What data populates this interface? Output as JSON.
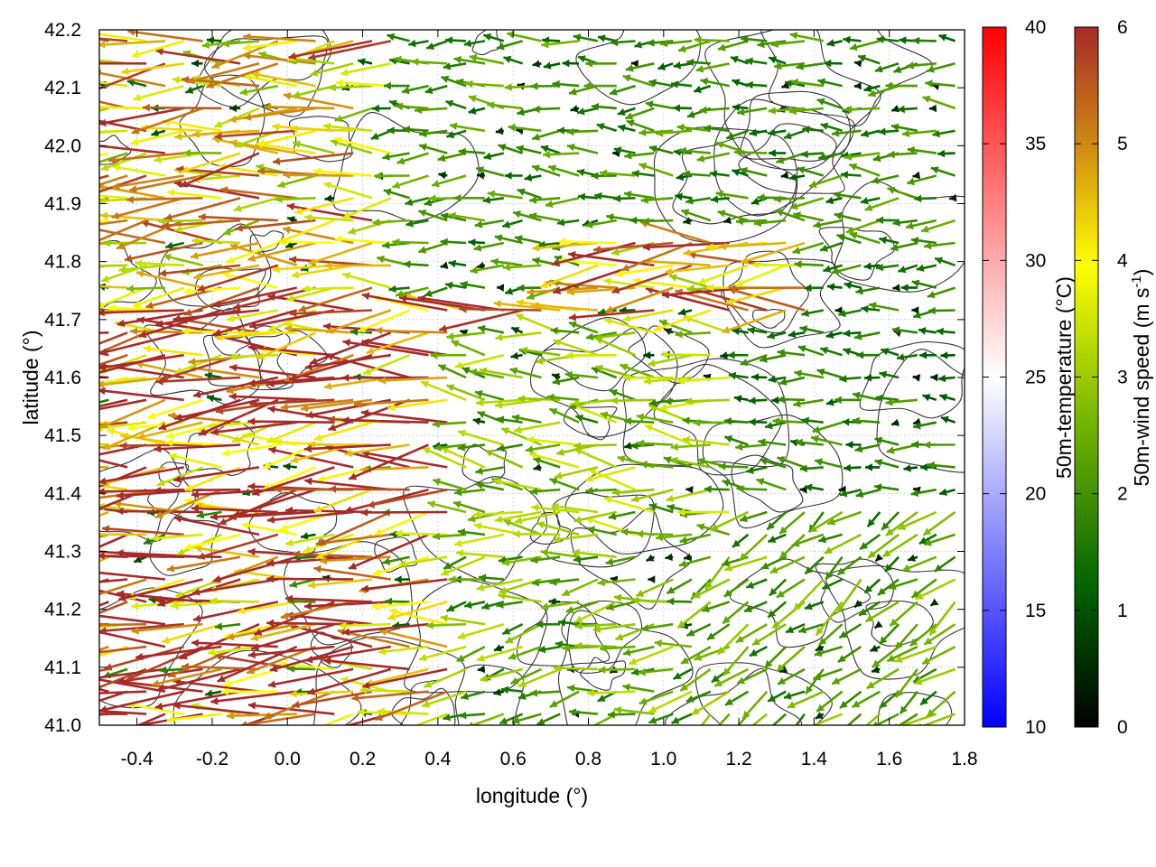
{
  "chart_data": {
    "type": "vector-field",
    "xlabel": "longitude (°)",
    "ylabel": "latitude (°)",
    "xlim": [
      -0.5,
      1.8
    ],
    "ylim": [
      41.0,
      42.2
    ],
    "x_ticks": [
      "-0.4",
      "-0.2",
      "0.0",
      "0.2",
      "0.4",
      "0.6",
      "0.8",
      "1.0",
      "1.2",
      "1.4",
      "1.6",
      "1.8"
    ],
    "y_ticks": [
      "41.0",
      "41.1",
      "41.2",
      "41.3",
      "41.4",
      "41.5",
      "41.6",
      "41.7",
      "41.8",
      "41.9",
      "42.0",
      "42.1",
      "42.2"
    ],
    "grid": true,
    "contour_color": "#333333",
    "temperature_colorbar": {
      "label": "50m-temperature (°C)",
      "range": [
        10,
        40
      ],
      "ticks": [
        "10",
        "15",
        "20",
        "25",
        "30",
        "35",
        "40"
      ],
      "colors": [
        "#0000ff",
        "#ffffff",
        "#ff0000"
      ]
    },
    "wind_colorbar": {
      "label_main": "50m-wind speed (m s",
      "label_sup": "-1",
      "label_end": ")",
      "range": [
        0,
        6
      ],
      "ticks": [
        "0",
        "1",
        "2",
        "3",
        "4",
        "5",
        "6"
      ],
      "colors": [
        "#000000",
        "#006400",
        "#7cba00",
        "#ffff00",
        "#d08a10",
        "#a52a2a"
      ]
    },
    "wind_regions": [
      {
        "lon": [
          -0.5,
          0.45
        ],
        "lat": [
          41.0,
          41.75
        ],
        "speed": 5.6,
        "direction_deg": 185
      },
      {
        "lon": [
          -0.5,
          0.3
        ],
        "lat": [
          41.75,
          42.2
        ],
        "speed": 4.3,
        "direction_deg": 183
      },
      {
        "lon": [
          0.3,
          0.8
        ],
        "lat": [
          41.75,
          42.2
        ],
        "speed": 1.9,
        "direction_deg": 180
      },
      {
        "lon": [
          0.45,
          1.4
        ],
        "lat": [
          41.7,
          41.85
        ],
        "speed": 4.8,
        "direction_deg": 183
      },
      {
        "lon": [
          0.45,
          1.2
        ],
        "lat": [
          41.3,
          41.7
        ],
        "speed": 2.6,
        "direction_deg": 175
      },
      {
        "lon": [
          0.8,
          1.8
        ],
        "lat": [
          41.85,
          42.2
        ],
        "speed": 1.8,
        "direction_deg": 180
      },
      {
        "lon": [
          1.2,
          1.8
        ],
        "lat": [
          41.4,
          41.85
        ],
        "speed": 1.6,
        "direction_deg": 180
      },
      {
        "lon": [
          1.1,
          1.8
        ],
        "lat": [
          41.0,
          41.4
        ],
        "speed": 2.2,
        "direction_deg": 215
      },
      {
        "lon": [
          0.45,
          1.1
        ],
        "lat": [
          41.0,
          41.3
        ],
        "speed": 2.4,
        "direction_deg": 190
      }
    ]
  }
}
